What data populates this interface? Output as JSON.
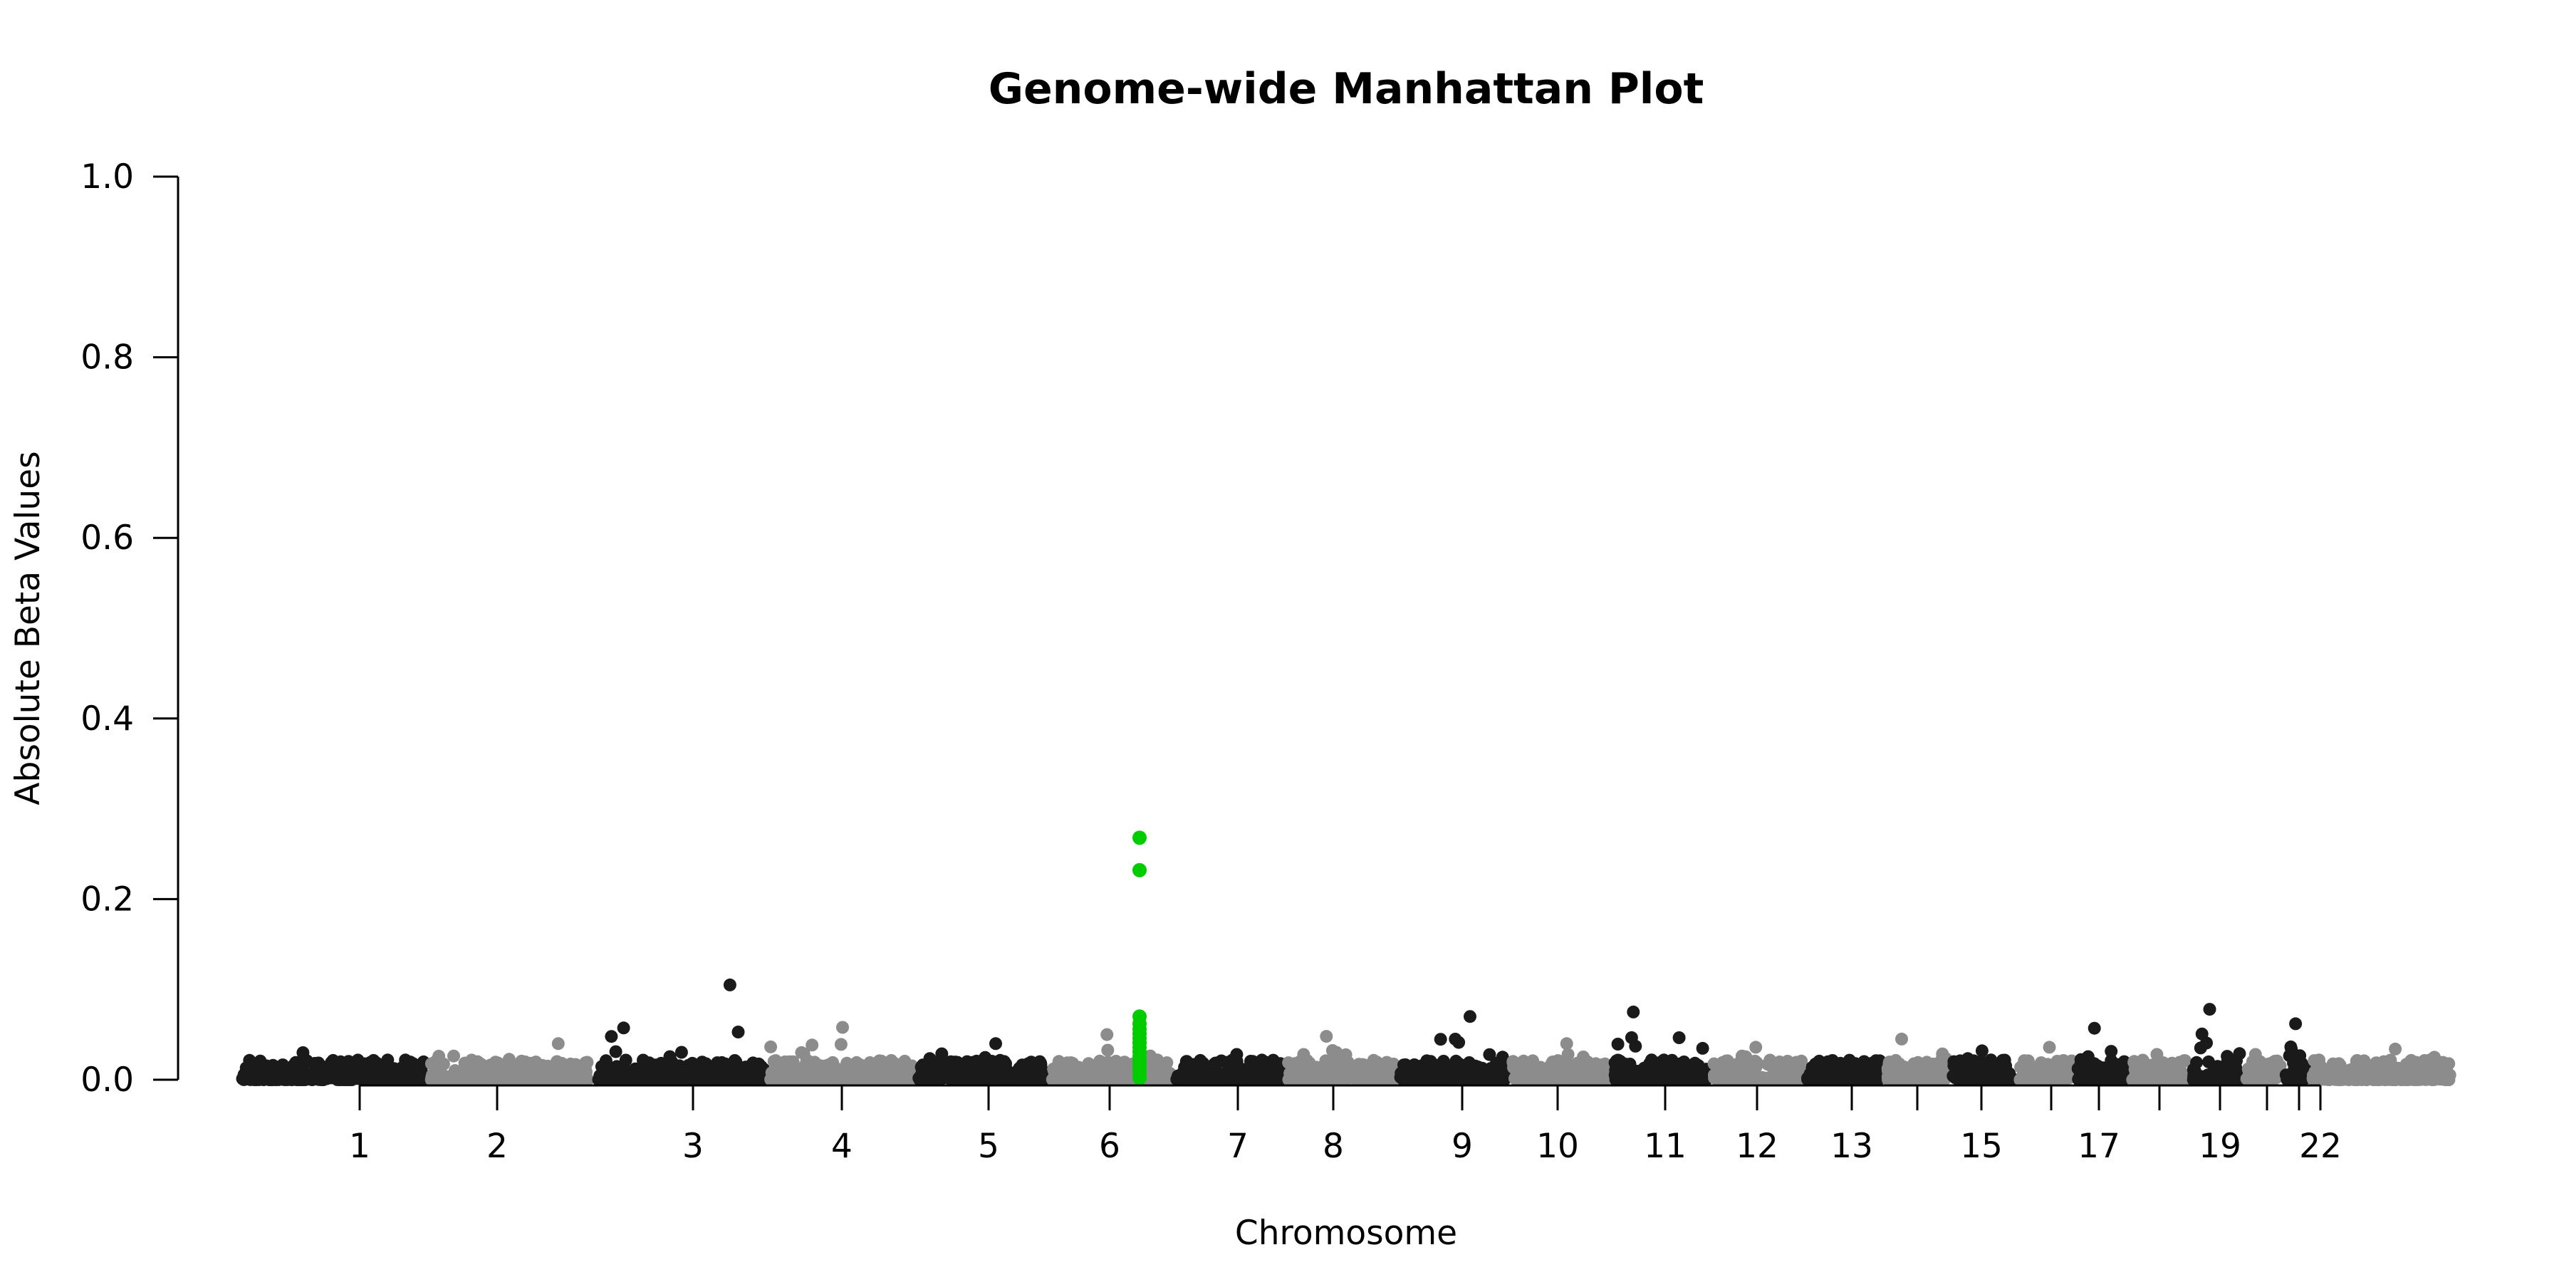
{
  "chart_data": {
    "type": "scatter",
    "title": "Genome-wide Manhattan Plot",
    "xlabel": "Chromosome",
    "ylabel": "Absolute Beta Values",
    "ylim": [
      0,
      1
    ],
    "y_ticks": [
      "0.0",
      "0.2",
      "0.4",
      "0.6",
      "0.8",
      "1.0"
    ],
    "y_tick_values": [
      0,
      0.2,
      0.4,
      0.6,
      0.8,
      1.0
    ],
    "chromosomes": [
      {
        "chr": 1,
        "tick_label": "1",
        "max": 0.03
      },
      {
        "chr": 2,
        "tick_label": "2",
        "max": 0.04
      },
      {
        "chr": 3,
        "tick_label": "3",
        "max": 0.105
      },
      {
        "chr": 4,
        "tick_label": "4",
        "max": 0.058
      },
      {
        "chr": 5,
        "tick_label": "5",
        "max": 0.04
      },
      {
        "chr": 6,
        "tick_label": "6",
        "max": 0.05
      },
      {
        "chr": 7,
        "tick_label": "7",
        "max": 0.028
      },
      {
        "chr": 8,
        "tick_label": "8",
        "max": 0.048
      },
      {
        "chr": 9,
        "tick_label": "9",
        "max": 0.07
      },
      {
        "chr": 10,
        "tick_label": "10",
        "max": 0.04
      },
      {
        "chr": 11,
        "tick_label": "11",
        "max": 0.075
      },
      {
        "chr": 12,
        "tick_label": "12",
        "max": 0.036
      },
      {
        "chr": 13,
        "tick_label": "13",
        "max": 0.018
      },
      {
        "chr": 14,
        "tick_label": "",
        "max": 0.045
      },
      {
        "chr": 15,
        "tick_label": "15",
        "max": 0.032
      },
      {
        "chr": 16,
        "tick_label": "",
        "max": 0.036
      },
      {
        "chr": 17,
        "tick_label": "17",
        "max": 0.057
      },
      {
        "chr": 18,
        "tick_label": "",
        "max": 0.028
      },
      {
        "chr": 19,
        "tick_label": "19",
        "max": 0.078
      },
      {
        "chr": 20,
        "tick_label": "",
        "max": 0.028
      },
      {
        "chr": 21,
        "tick_label": "",
        "max": 0.062
      },
      {
        "chr": 22,
        "tick_label": "22",
        "max": 0.034
      }
    ],
    "highlight": {
      "chromosome": 6,
      "values": [
        0.268,
        0.232,
        0.07,
        0.062,
        0.056,
        0.051,
        0.046,
        0.041,
        0.036,
        0.031,
        0.026,
        0.021,
        0.016,
        0.011,
        0.006,
        0.002
      ],
      "color": "#00CC00"
    },
    "colors": {
      "odd_chromosomes": "#1A1A1A",
      "even_chromosomes": "#8C8C8C",
      "highlight": "#00CC00"
    },
    "grid": false,
    "legend": "none"
  }
}
